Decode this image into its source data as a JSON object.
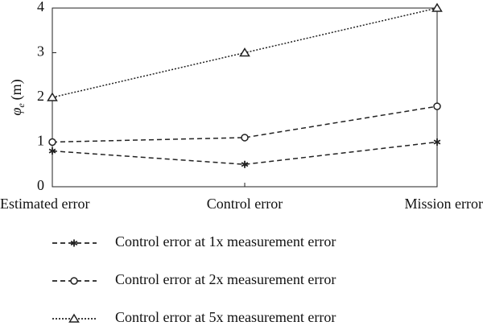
{
  "chart_data": {
    "type": "line",
    "y_label": {
      "symbol": "φ",
      "subscript": "e",
      "unit": "(m)"
    },
    "categories": [
      "Estimated error",
      "Control error",
      "Mission error"
    ],
    "series": [
      {
        "name": "Control error at 1x measurement error",
        "color": "#222222",
        "marker": "asterisk",
        "dash": "dashed",
        "values": [
          0.8,
          0.5,
          1.0
        ]
      },
      {
        "name": "Control error at 2x measurement error",
        "color": "#222222",
        "marker": "circle",
        "dash": "dashed",
        "values": [
          1.0,
          1.1,
          1.8
        ]
      },
      {
        "name": "Control error at 5x measurement error",
        "color": "#222222",
        "marker": "triangle",
        "dash": "dotted",
        "values": [
          2,
          3,
          4
        ]
      }
    ],
    "ylim": [
      0,
      4
    ],
    "yticks": [
      0,
      1,
      2,
      3,
      4
    ],
    "legend": "bottom"
  }
}
